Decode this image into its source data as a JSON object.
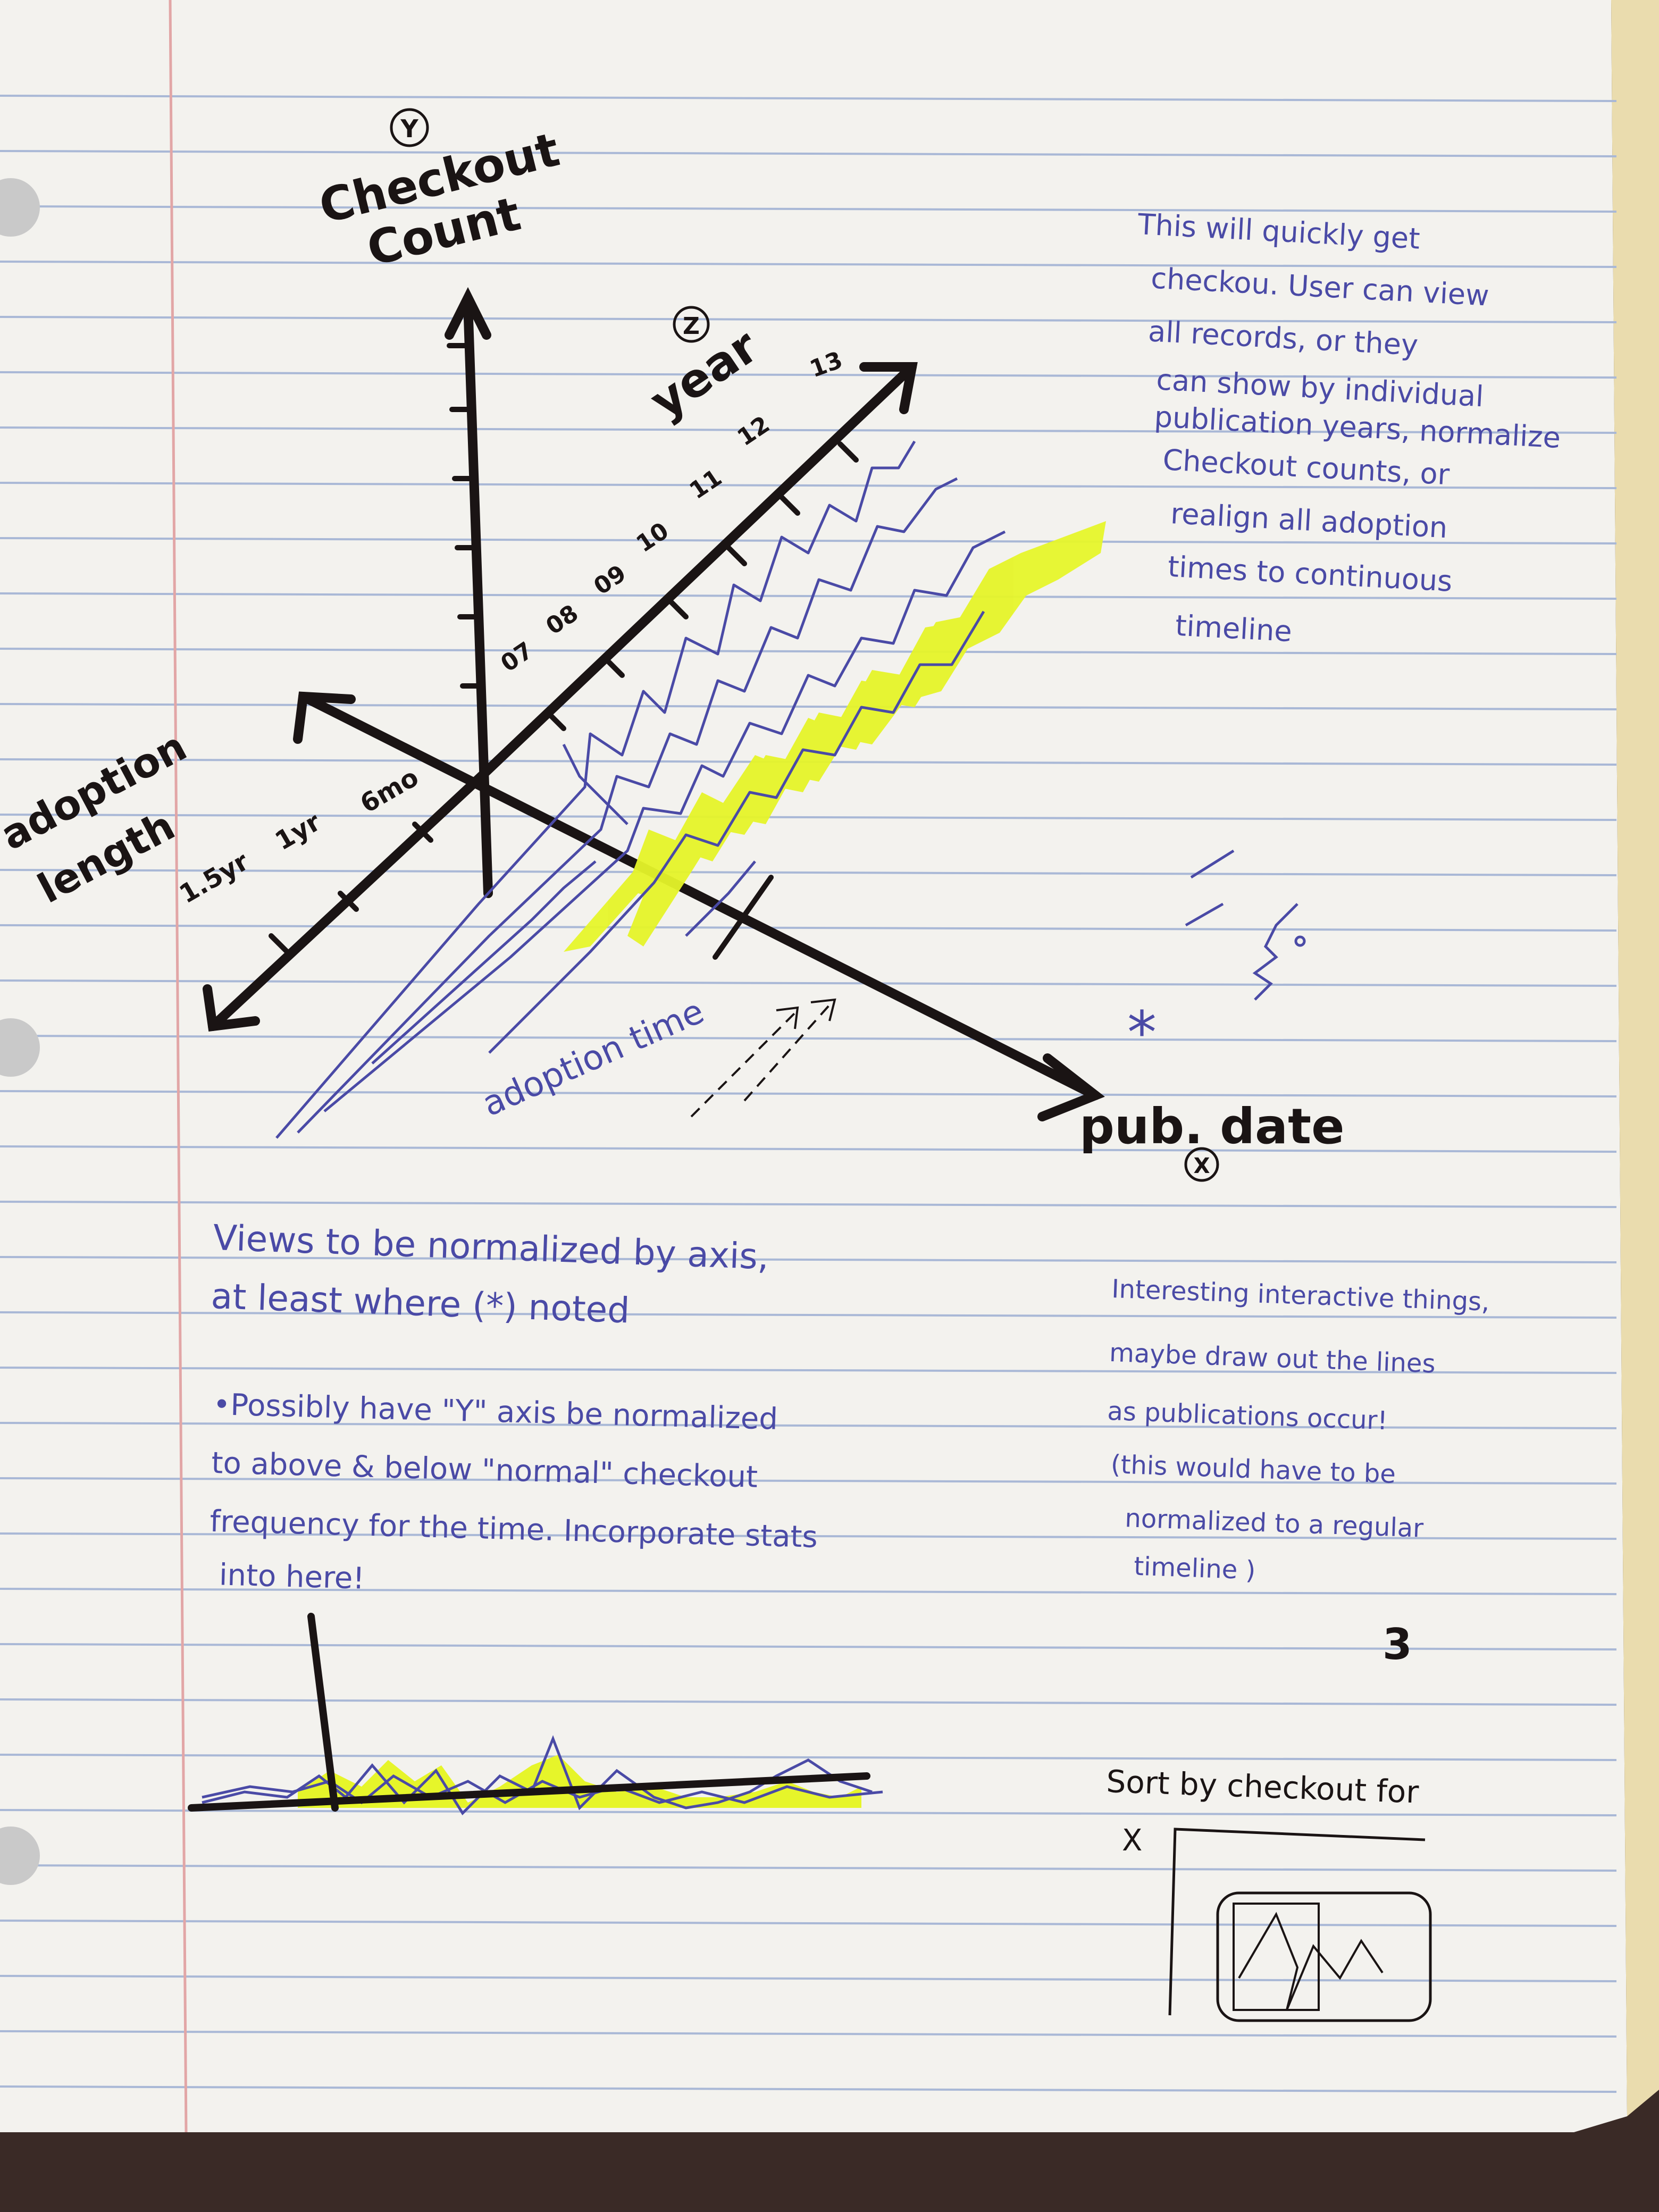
{
  "axes": {
    "y_circle": "Y",
    "y_label_line1": "Checkout",
    "y_label_line2": "Count",
    "z_circle": "Z",
    "z_label": "year",
    "x_label": "pub. date",
    "x_circle": "X",
    "adoption_label_line1": "adoption",
    "adoption_label_line2": "length",
    "adoption_ticks": [
      "1.5yr",
      "1yr",
      "6mo"
    ],
    "year_ticks": [
      "07",
      "08",
      "09",
      "10",
      "11",
      "12",
      "13"
    ],
    "adoption_time_label": "adoption time"
  },
  "colors": {
    "paper": "#f3f2ee",
    "rule_line": "#a9b8d6",
    "margin_line": "#e2a6a6",
    "marker": "#1a1414",
    "pen": "#4a4aa6",
    "highlight": "#e6f52a"
  },
  "notes": {
    "top_right": [
      "This will quickly get",
      "checkou. User can view",
      "all records, or they",
      "can show by individual",
      "publication years, normalize",
      "Checkout counts, or",
      "realign all adoption",
      "times to continuous",
      "timeline"
    ],
    "views": [
      "Views to be normalized by axis,",
      "at least where (*) noted"
    ],
    "possibly": [
      "•Possibly have \"Y\" axis be normalized",
      "to above & below \"normal\" checkout",
      "frequency for the time. Incorporate stats",
      "into here!"
    ],
    "interesting": [
      "Interesting interactive things,",
      "maybe draw out the lines",
      "as publications occur!",
      "(this would have to be",
      "normalized to a regular",
      "timeline )"
    ],
    "sort": "Sort by checkout for",
    "sort_x": "X",
    "asterisk": "*",
    "page_mark": "3"
  }
}
